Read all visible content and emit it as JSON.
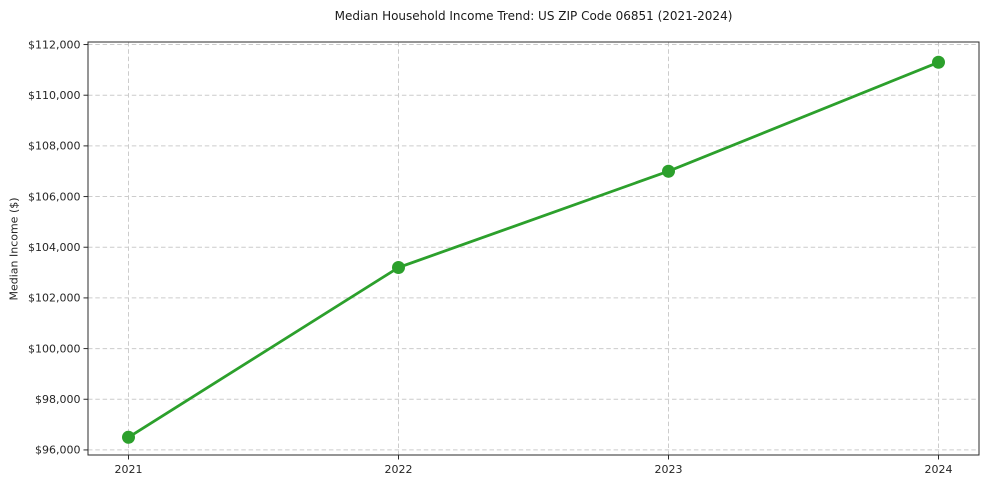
{
  "chart_data": {
    "type": "line",
    "title": "Median Household Income Trend: US ZIP Code 06851 (2021-2024)",
    "xlabel": "",
    "ylabel": "Median Income ($)",
    "categories": [
      "2021",
      "2022",
      "2023",
      "2024"
    ],
    "x": [
      2021,
      2022,
      2023,
      2024
    ],
    "values": [
      96500,
      103200,
      107000,
      111300
    ],
    "x_tick_labels": [
      "2021",
      "2022",
      "2023",
      "2024"
    ],
    "y_ticks": [
      96000,
      98000,
      100000,
      102000,
      104000,
      106000,
      108000,
      110000,
      112000
    ],
    "y_tick_labels": [
      "$96,000",
      "$98,000",
      "$100,000",
      "$102,000",
      "$104,000",
      "$106,000",
      "$108,000",
      "$110,000",
      "$112,000"
    ],
    "xlim": [
      2020.85,
      2024.15
    ],
    "ylim": [
      95800,
      112100
    ],
    "grid": true,
    "grid_linestyle": "dashed",
    "legend_position": "none",
    "line_color": "#2ca02c",
    "marker": "circle",
    "marker_color": "#2ca02c",
    "grid_color": "#cccccc",
    "text_color": "#262626",
    "background_color": "#ffffff"
  }
}
